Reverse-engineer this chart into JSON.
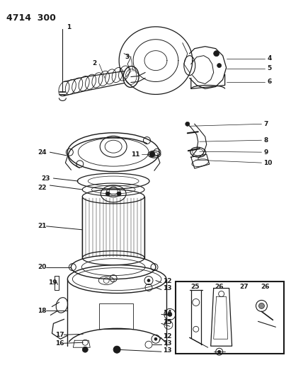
{
  "header_text": "4714  300",
  "bg_color": "#ffffff",
  "line_color": "#1a1a1a",
  "fig_width": 4.11,
  "fig_height": 5.33,
  "dpi": 100,
  "label_fontsize": 6.5,
  "header_fontsize": 9
}
